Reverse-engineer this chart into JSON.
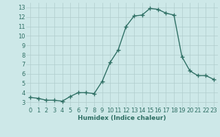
{
  "x": [
    0,
    1,
    2,
    3,
    4,
    5,
    6,
    7,
    8,
    9,
    10,
    11,
    12,
    13,
    14,
    15,
    16,
    17,
    18,
    19,
    20,
    21,
    22,
    23
  ],
  "y": [
    3.5,
    3.4,
    3.2,
    3.2,
    3.1,
    3.6,
    4.0,
    4.0,
    3.9,
    5.2,
    7.2,
    8.5,
    11.0,
    12.1,
    12.2,
    12.9,
    12.8,
    12.4,
    12.2,
    7.8,
    6.3,
    5.8,
    5.8,
    5.4
  ],
  "line_color": "#2e7d6e",
  "marker": "+",
  "marker_size": 4,
  "linewidth": 1.0,
  "xlabel": "Humidex (Indice chaleur)",
  "xlim": [
    -0.5,
    23.5
  ],
  "ylim": [
    2.5,
    13.5
  ],
  "yticks": [
    3,
    4,
    5,
    6,
    7,
    8,
    9,
    10,
    11,
    12,
    13
  ],
  "xticks": [
    0,
    1,
    2,
    3,
    4,
    5,
    6,
    7,
    8,
    9,
    10,
    11,
    12,
    13,
    14,
    15,
    16,
    17,
    18,
    19,
    20,
    21,
    22,
    23
  ],
  "background_color": "#cde8e8",
  "grid_color": "#b0cccc",
  "line_and_tick_color": "#2d6e63",
  "xlabel_fontsize": 6.5,
  "tick_fontsize": 6
}
